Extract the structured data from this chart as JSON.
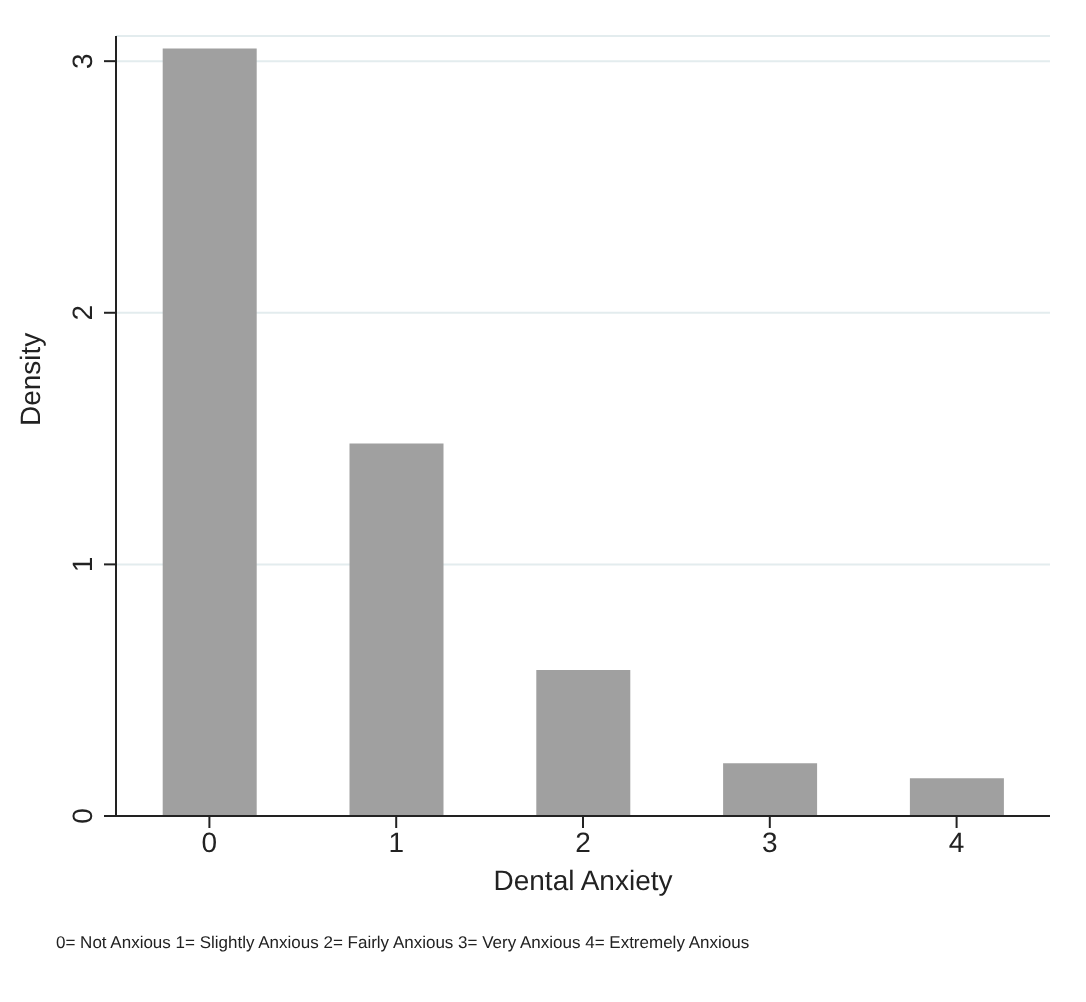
{
  "chart_data": {
    "type": "bar",
    "xlabel": "Dental Anxiety",
    "ylabel": "Density",
    "categories": [
      "0",
      "1",
      "2",
      "3",
      "4"
    ],
    "values": [
      3.05,
      1.48,
      0.58,
      0.21,
      0.15
    ],
    "color": "#a0a0a0",
    "ylim": [
      0,
      3.1
    ],
    "yticks": [
      0,
      1,
      2,
      3
    ],
    "grid": "y",
    "annotations": [
      "0= Not Anxious 1= Slightly Anxious 2= Fairly Anxious 3= Very Anxious 4= Extremely Anxious"
    ]
  }
}
